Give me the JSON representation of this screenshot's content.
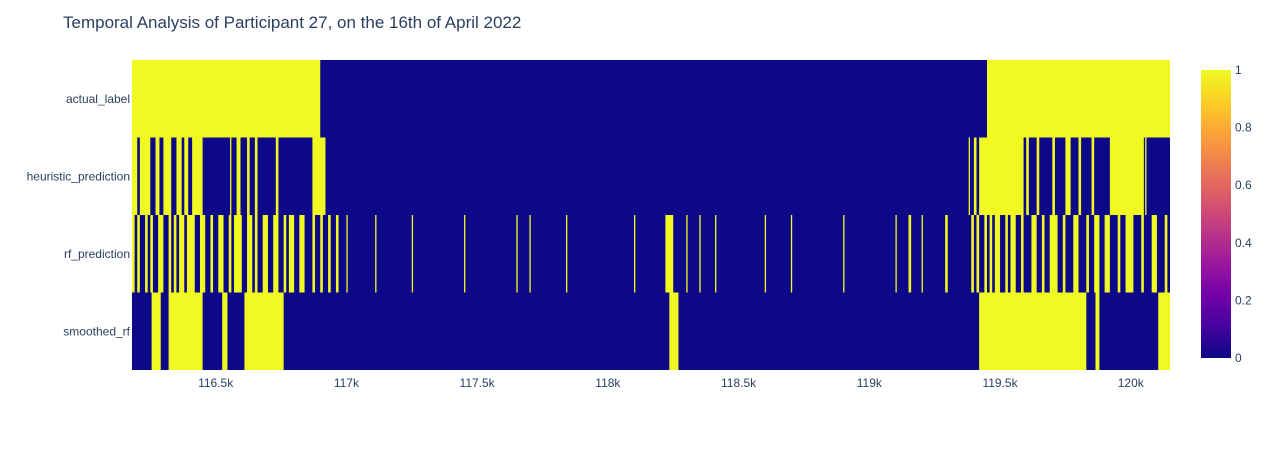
{
  "chart_data": {
    "type": "heatmap",
    "title": "Temporal Analysis of Participant 27, on the 16th of April 2022",
    "xlabel": "",
    "ylabel": "",
    "x_range": [
      116180,
      120150
    ],
    "x_ticks": [
      {
        "value": 116500,
        "label": "116.5k"
      },
      {
        "value": 117000,
        "label": "117k"
      },
      {
        "value": 117500,
        "label": "117.5k"
      },
      {
        "value": 118000,
        "label": "118k"
      },
      {
        "value": 118500,
        "label": "118.5k"
      },
      {
        "value": 119000,
        "label": "119k"
      },
      {
        "value": 119500,
        "label": "119.5k"
      },
      {
        "value": 120000,
        "label": "120k"
      }
    ],
    "colorscale": {
      "name": "plasma",
      "min": 0,
      "max": 1,
      "ticks": [
        {
          "value": 0,
          "label": "0"
        },
        {
          "value": 0.2,
          "label": "0.2"
        },
        {
          "value": 0.4,
          "label": "0.4"
        },
        {
          "value": 0.6,
          "label": "0.6"
        },
        {
          "value": 0.8,
          "label": "0.8"
        },
        {
          "value": 1,
          "label": "1"
        }
      ],
      "low_color": "#0d0887",
      "high_color": "#f0f921"
    },
    "rows": [
      {
        "label": "actual_label",
        "ones": [
          [
            116180,
            116900
          ],
          [
            119450,
            120150
          ]
        ]
      },
      {
        "label": "heuristic_prediction",
        "ones": [
          [
            116180,
            116200
          ],
          [
            116210,
            116250
          ],
          [
            116270,
            116285
          ],
          [
            116300,
            116330
          ],
          [
            116350,
            116370
          ],
          [
            116380,
            116395
          ],
          [
            116410,
            116450
          ],
          [
            116555,
            116560
          ],
          [
            116580,
            116595
          ],
          [
            116620,
            116630
          ],
          [
            116650,
            116660
          ],
          [
            116730,
            116740
          ],
          [
            116870,
            116920
          ],
          [
            119380,
            119385
          ],
          [
            119400,
            119410
          ],
          [
            119420,
            119590
          ],
          [
            119600,
            119610
          ],
          [
            119640,
            119650
          ],
          [
            119700,
            119710
          ],
          [
            119750,
            119770
          ],
          [
            119800,
            119810
          ],
          [
            119850,
            119860
          ],
          [
            119920,
            120050
          ],
          [
            120055,
            120060
          ]
        ]
      },
      {
        "label": "rf_prediction",
        "ones": [
          [
            116180,
            116190
          ],
          [
            116200,
            116210
          ],
          [
            116230,
            116240
          ],
          [
            116250,
            116260
          ],
          [
            116280,
            116300
          ],
          [
            116320,
            116330
          ],
          [
            116340,
            116350
          ],
          [
            116360,
            116380
          ],
          [
            116390,
            116420
          ],
          [
            116440,
            116460
          ],
          [
            116480,
            116490
          ],
          [
            116510,
            116530
          ],
          [
            116550,
            116560
          ],
          [
            116570,
            116600
          ],
          [
            116620,
            116640
          ],
          [
            116650,
            116660
          ],
          [
            116680,
            116700
          ],
          [
            116720,
            116740
          ],
          [
            116760,
            116770
          ],
          [
            116780,
            116800
          ],
          [
            116820,
            116840
          ],
          [
            116870,
            116880
          ],
          [
            116900,
            116910
          ],
          [
            116930,
            116940
          ],
          [
            116960,
            116970
          ],
          [
            117000,
            117005
          ],
          [
            117110,
            117115
          ],
          [
            117250,
            117255
          ],
          [
            117450,
            117455
          ],
          [
            117650,
            117655
          ],
          [
            117700,
            117705
          ],
          [
            117840,
            117845
          ],
          [
            118100,
            118105
          ],
          [
            118220,
            118250
          ],
          [
            118300,
            118305
          ],
          [
            118350,
            118355
          ],
          [
            118410,
            118415
          ],
          [
            118600,
            118605
          ],
          [
            118700,
            118705
          ],
          [
            118900,
            118905
          ],
          [
            119100,
            119105
          ],
          [
            119150,
            119160
          ],
          [
            119200,
            119205
          ],
          [
            119290,
            119300
          ],
          [
            119390,
            119400
          ],
          [
            119410,
            119420
          ],
          [
            119440,
            119450
          ],
          [
            119460,
            119470
          ],
          [
            119480,
            119500
          ],
          [
            119520,
            119530
          ],
          [
            119540,
            119560
          ],
          [
            119580,
            119590
          ],
          [
            119620,
            119640
          ],
          [
            119660,
            119670
          ],
          [
            119690,
            119720
          ],
          [
            119740,
            119750
          ],
          [
            119780,
            119800
          ],
          [
            119830,
            119840
          ],
          [
            119860,
            119880
          ],
          [
            119900,
            119920
          ],
          [
            119950,
            119960
          ],
          [
            119980,
            120010
          ],
          [
            120040,
            120050
          ],
          [
            120080,
            120100
          ],
          [
            120130,
            120140
          ]
        ]
      },
      {
        "label": "smoothed_rf",
        "ones": [
          [
            116255,
            116290
          ],
          [
            116320,
            116450
          ],
          [
            116525,
            116545
          ],
          [
            116610,
            116760
          ],
          [
            118235,
            118270
          ],
          [
            119420,
            119830
          ],
          [
            119865,
            119880
          ],
          [
            120105,
            120150
          ]
        ]
      }
    ]
  }
}
